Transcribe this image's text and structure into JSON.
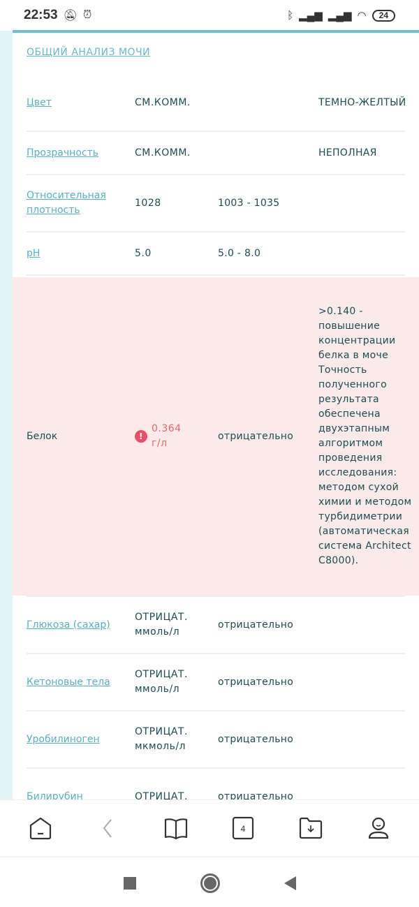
{
  "status": {
    "time": "22:53",
    "battery": "24"
  },
  "section_title": "ОБЩИЙ АНАЛИЗ МОЧИ",
  "rows": [
    {
      "name": "Цвет",
      "value": "СМ.КОММ.",
      "ref": "",
      "comment": "ТЕМНО-ЖЕЛТЫЙ"
    },
    {
      "name": "Прозрачность",
      "value": "СМ.КОММ.",
      "ref": "",
      "comment": "НЕПОЛНАЯ"
    },
    {
      "name": "Относительная плотность",
      "value": "1028",
      "ref": "1003 - 1035",
      "comment": ""
    },
    {
      "name": "pH",
      "value": "5.0",
      "ref": "5.0 - 8.0",
      "comment": ""
    },
    {
      "name": "Белок",
      "value": "0.364 г/л",
      "ref": "отрицательно",
      "comment": ">0.140 - повышение концентрации белка в моче Точность полученного результата обеспечена двухэтапным алгоритмом проведения исследования: методом сухой химии и методом турбидиметрии (автоматическая система Architect C8000).",
      "abnormal": true
    },
    {
      "name": "Глюкоза (сахар)",
      "value": "ОТРИЦАТ. ммоль/л",
      "ref": "отрицательно",
      "comment": ""
    },
    {
      "name": "Кетоновые тела",
      "value": "ОТРИЦАТ. ммоль/л",
      "ref": "отрицательно",
      "comment": ""
    },
    {
      "name": "Уробилиноген",
      "value": "ОТРИЦАТ. мкмоль/л",
      "ref": "отрицательно",
      "comment": ""
    },
    {
      "name": "Билирубин",
      "value": "ОТРИЦАТ.",
      "ref": "отрицательно",
      "comment": ""
    }
  ],
  "bottom_nav": {
    "tabs_count": "4"
  },
  "colors": {
    "accent": "#6fc0cc",
    "link": "#5bb0c2",
    "alert_bg": "#fbeaea",
    "alert_text": "#e06a6a"
  }
}
